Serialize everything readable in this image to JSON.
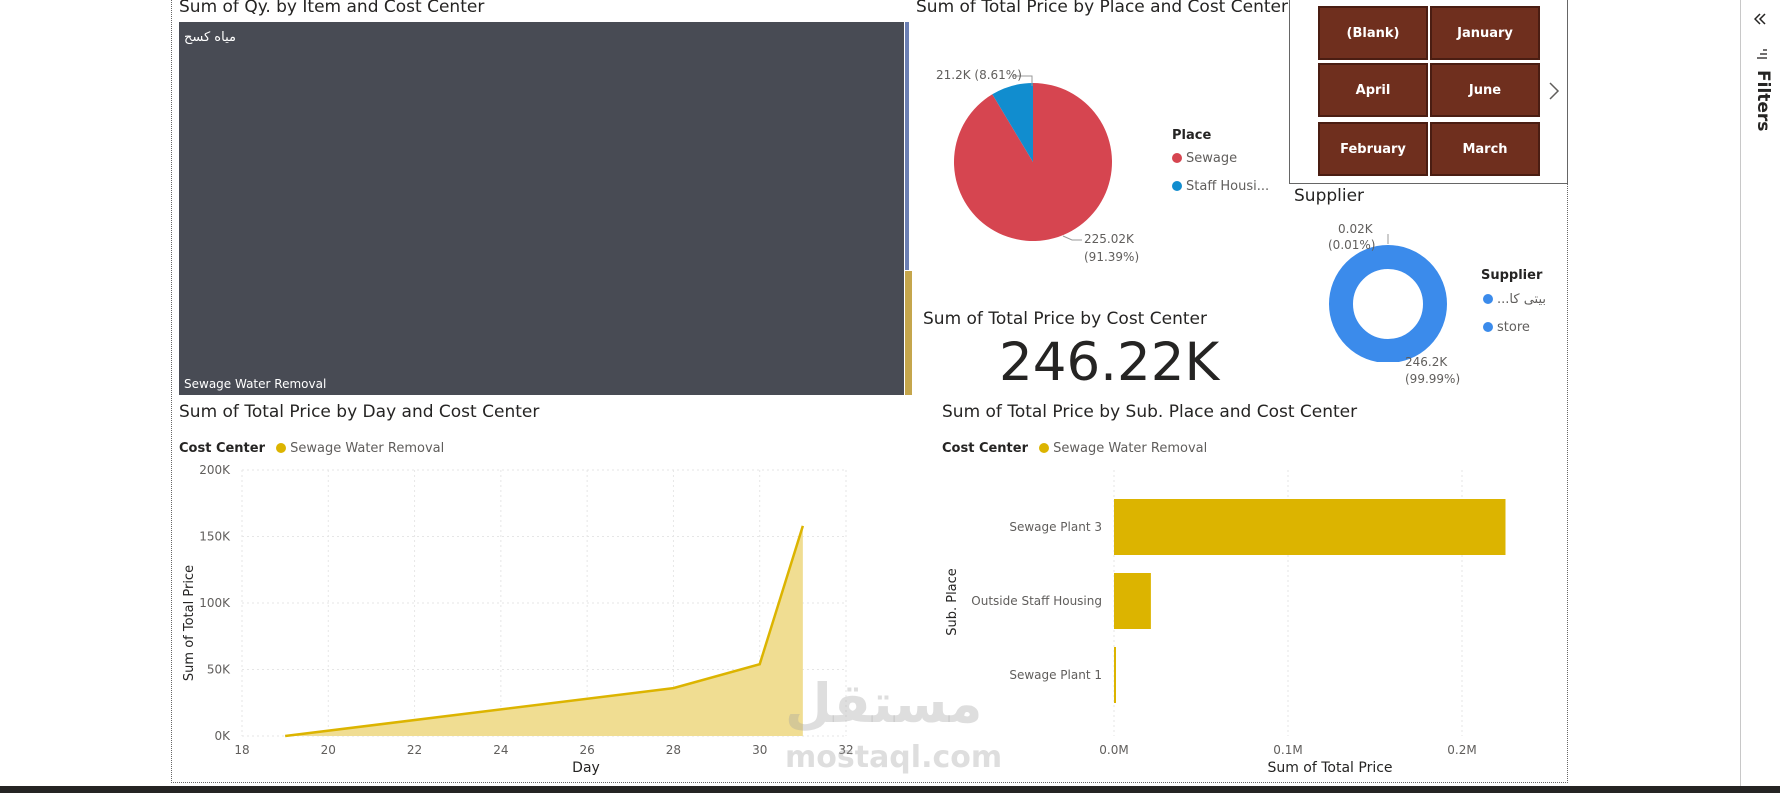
{
  "treemap": {
    "title": "Sum of Qy. by Item and Cost Center",
    "item_label": "مياه كسح",
    "cost_center_label": "Sewage Water Removal",
    "colors": {
      "main": "#484b54",
      "strip1": "#6b7fb3",
      "strip2": "#c5a64c"
    }
  },
  "pie": {
    "title": "Sum of Total Price by Place and Cost Center",
    "legend_title": "Place",
    "slices": [
      {
        "name": "Sewage",
        "value": 225.02,
        "label": "225.02K",
        "pct": "(91.39%)",
        "color": "#d64550"
      },
      {
        "name": "Staff Housi...",
        "value": 21.2,
        "label": "21.2K (8.61%)",
        "pct": "",
        "color": "#118dcf"
      }
    ]
  },
  "slicer": {
    "buttons": [
      "(Blank)",
      "January",
      "April",
      "June",
      "February",
      "March"
    ],
    "next_icon": "chevron-right-icon"
  },
  "donut": {
    "title": "Supplier",
    "legend_title": "Supplier",
    "items": [
      {
        "name": "...بيتى كا",
        "label": "0.02K",
        "pct": "(0.01%)",
        "color": "#3b8beb"
      },
      {
        "name": "store",
        "label": "246.2K",
        "pct": "(99.99%)",
        "color": "#3b8beb"
      }
    ]
  },
  "card": {
    "title": "Sum of Total Price by Cost Center",
    "value": "246.22K"
  },
  "line_chart": {
    "title": "Sum of Total Price by Day and Cost Center",
    "legend_title": "Cost Center",
    "legend_item": "Sewage Water Removal",
    "color": "#dcb400",
    "xlabel": "Day",
    "ylabel": "Sum of Total Price",
    "x_ticks": [
      "18",
      "20",
      "22",
      "24",
      "26",
      "28",
      "30",
      "32"
    ],
    "y_ticks": [
      "200K",
      "150K",
      "100K",
      "50K",
      "0K"
    ]
  },
  "bar_chart": {
    "title": "Sum of Total Price by Sub. Place and Cost Center",
    "legend_title": "Cost Center",
    "legend_item": "Sewage Water Removal",
    "color": "#dcb400",
    "xlabel": "Sum of Total Price",
    "ylabel": "Sub. Place",
    "x_ticks": [
      "0.0M",
      "0.1M",
      "0.2M"
    ]
  },
  "chart_data": [
    {
      "type": "line",
      "title": "Sum of Total Price by Day and Cost Center",
      "xlabel": "Day",
      "ylabel": "Sum of Total Price",
      "xlim": [
        18,
        32
      ],
      "ylim": [
        0,
        200000
      ],
      "series": [
        {
          "name": "Sewage Water Removal",
          "x": [
            19,
            28,
            30,
            31
          ],
          "y": [
            0,
            36000,
            54000,
            158000
          ]
        }
      ]
    },
    {
      "type": "bar",
      "title": "Sum of Total Price by Sub. Place and Cost Center",
      "xlabel": "Sum of Total Price",
      "ylabel": "Sub. Place",
      "categories": [
        "Sewage Plant 3",
        "Outside Staff Housing",
        "Sewage Plant 1"
      ],
      "values": [
        225000,
        21200,
        1000
      ],
      "xlim": [
        0,
        250000
      ]
    },
    {
      "type": "pie",
      "title": "Sum of Total Price by Place and Cost Center",
      "categories": [
        "Sewage",
        "Staff Housi..."
      ],
      "values": [
        225020,
        21200
      ]
    },
    {
      "type": "pie",
      "title": "Supplier",
      "categories": [
        "...بيتى كا",
        "store"
      ],
      "values": [
        20,
        246200
      ]
    }
  ],
  "filters_pane": {
    "label": "Filters",
    "collapse_icon": "double-chevron-left-icon",
    "filter_icon": "filter-lines-icon"
  },
  "watermark": {
    "logo_text": "مستقل",
    "url_text": "mostaql.com"
  }
}
